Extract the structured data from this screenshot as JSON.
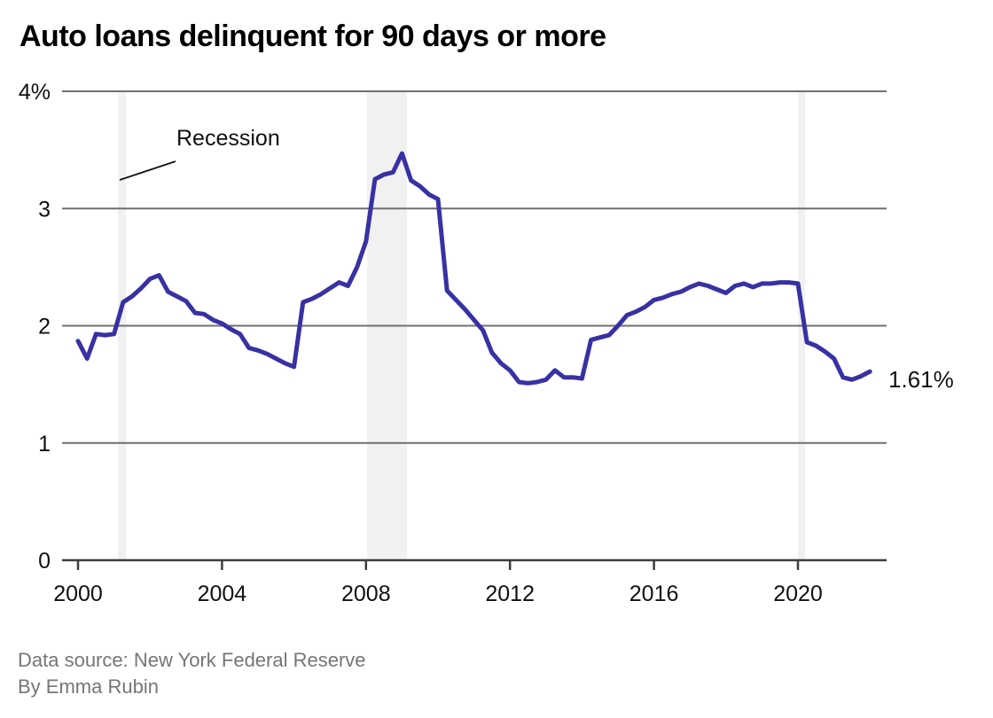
{
  "title": "Auto loans delinquent for 90 days or more",
  "annotation": {
    "label": "Recession"
  },
  "end_label": "1.61%",
  "footer": {
    "source": "Data source: New York Federal Reserve",
    "byline": "By Emma Rubin"
  },
  "colors": {
    "line": "#3831a4",
    "gridline": "#6f6f6f",
    "axis": "#3d3d3d",
    "band": "#f1f1f1",
    "tick_text": "#111111",
    "muted_text": "#767676"
  },
  "chart_data": {
    "type": "line",
    "title": "Auto loans delinquent for 90 days or more",
    "unit": "%",
    "x_start": 2000.0,
    "x_step": 0.25,
    "x_end": 2022.0,
    "ylim": [
      0,
      4
    ],
    "grid": "horizontal",
    "legend": "none",
    "yticks": [
      {
        "value": 4,
        "label": "4%"
      },
      {
        "value": 3,
        "label": "3"
      },
      {
        "value": 2,
        "label": "2"
      },
      {
        "value": 1,
        "label": "1"
      },
      {
        "value": 0,
        "label": "0"
      }
    ],
    "xticks": [
      {
        "value": 2000,
        "label": "2000"
      },
      {
        "value": 2004,
        "label": "2004"
      },
      {
        "value": 2008,
        "label": "2008"
      },
      {
        "value": 2012,
        "label": "2012"
      },
      {
        "value": 2016,
        "label": "2016"
      },
      {
        "value": 2020,
        "label": "2020"
      }
    ],
    "recession_bands": [
      {
        "from": 2001.11,
        "to": 2001.33
      },
      {
        "from": 2008.03,
        "to": 2009.14
      },
      {
        "from": 2020.0,
        "to": 2020.2
      }
    ],
    "series": [
      {
        "name": "Share of auto loans delinquent 90+ days",
        "values": [
          1.87,
          1.72,
          1.93,
          1.92,
          1.93,
          2.2,
          2.25,
          2.32,
          2.4,
          2.43,
          2.29,
          2.25,
          2.21,
          2.11,
          2.1,
          2.05,
          2.02,
          1.97,
          1.93,
          1.81,
          1.79,
          1.76,
          1.72,
          1.68,
          1.65,
          2.2,
          2.23,
          2.27,
          2.32,
          2.37,
          2.34,
          2.5,
          2.72,
          3.25,
          3.29,
          3.31,
          3.47,
          3.24,
          3.19,
          3.12,
          3.08,
          2.3,
          2.22,
          2.14,
          2.05,
          1.96,
          1.77,
          1.68,
          1.62,
          1.52,
          1.51,
          1.52,
          1.54,
          1.62,
          1.56,
          1.56,
          1.55,
          1.88,
          1.9,
          1.92,
          2.0,
          2.09,
          2.12,
          2.16,
          2.22,
          2.24,
          2.27,
          2.29,
          2.33,
          2.36,
          2.34,
          2.31,
          2.28,
          2.34,
          2.36,
          2.33,
          2.36,
          2.36,
          2.37,
          2.37,
          2.36,
          1.86,
          1.83,
          1.78,
          1.72,
          1.56,
          1.54,
          1.57,
          1.61
        ]
      }
    ],
    "last_value_label": "1.61%"
  }
}
